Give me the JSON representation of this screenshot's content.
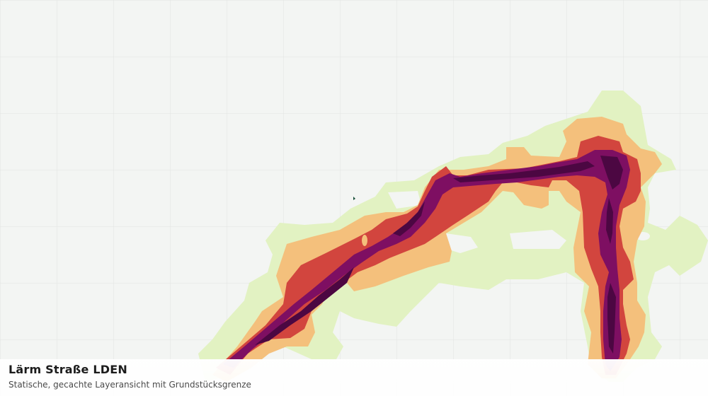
{
  "layer": {
    "title": "Lärm Straße LDEN",
    "subtitle": "Statische, gecachte Layeransicht mit Grundstücksgrenze"
  },
  "colors": {
    "background": "#f3f5f3",
    "grid": "#e1e3e1",
    "noise_band_1": "#e2f2c2",
    "noise_band_2": "#f4c07c",
    "noise_band_3": "#d2453e",
    "noise_band_4": "#7e0f62",
    "noise_band_5": "#4c0742",
    "parcel_marker": "#1a4f3a"
  }
}
